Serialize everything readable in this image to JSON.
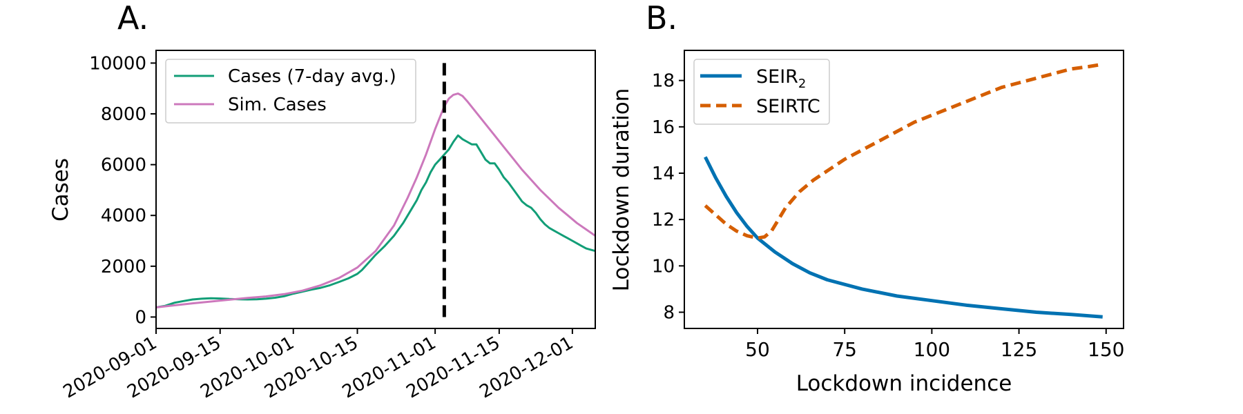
{
  "colors": {
    "cases": "#129e77",
    "sim_cases": "#cc78bc",
    "seir2": "#0072b2",
    "seirtc": "#d55e00",
    "lockdown_line": "#000000"
  },
  "chart_data": [
    {
      "type": "line",
      "panel_label": "A.",
      "title": "",
      "xlabel": "",
      "ylabel": "Cases",
      "x_unit": "days since 2020-09-01",
      "xlim": [
        0,
        96
      ],
      "ylim": [
        -450,
        10500
      ],
      "xticks": [
        {
          "value": 0,
          "label": "2020-09-01"
        },
        {
          "value": 14,
          "label": "2020-09-15"
        },
        {
          "value": 30,
          "label": "2020-10-01"
        },
        {
          "value": 44,
          "label": "2020-10-15"
        },
        {
          "value": 61,
          "label": "2020-11-01"
        },
        {
          "value": 75,
          "label": "2020-11-15"
        },
        {
          "value": 91,
          "label": "2020-12-01"
        }
      ],
      "yticks": [
        {
          "value": 0,
          "label": "0"
        },
        {
          "value": 2000,
          "label": "2000"
        },
        {
          "value": 4000,
          "label": "4000"
        },
        {
          "value": 6000,
          "label": "6000"
        },
        {
          "value": 8000,
          "label": "8000"
        },
        {
          "value": 10000,
          "label": "10000"
        }
      ],
      "vline": {
        "x": 63,
        "y_range": [
          0,
          10000
        ],
        "style": "dashed"
      },
      "legend_position": "top-left",
      "series": [
        {
          "name": "Cases (7-day avg.)",
          "color_key": "cases",
          "style": "solid",
          "points": [
            [
              0,
              380
            ],
            [
              2,
              440
            ],
            [
              4,
              560
            ],
            [
              6,
              630
            ],
            [
              8,
              690
            ],
            [
              10,
              720
            ],
            [
              12,
              740
            ],
            [
              14,
              730
            ],
            [
              16,
              710
            ],
            [
              18,
              700
            ],
            [
              20,
              690
            ],
            [
              22,
              700
            ],
            [
              24,
              720
            ],
            [
              26,
              760
            ],
            [
              28,
              820
            ],
            [
              30,
              920
            ],
            [
              32,
              1000
            ],
            [
              34,
              1080
            ],
            [
              36,
              1150
            ],
            [
              38,
              1250
            ],
            [
              40,
              1380
            ],
            [
              42,
              1520
            ],
            [
              44,
              1700
            ],
            [
              45,
              1850
            ],
            [
              46,
              2050
            ],
            [
              48,
              2450
            ],
            [
              50,
              2800
            ],
            [
              52,
              3200
            ],
            [
              54,
              3700
            ],
            [
              56,
              4300
            ],
            [
              57,
              4600
            ],
            [
              58,
              5000
            ],
            [
              59,
              5300
            ],
            [
              60,
              5700
            ],
            [
              61,
              6000
            ],
            [
              62,
              6200
            ],
            [
              63,
              6400
            ],
            [
              64,
              6600
            ],
            [
              65,
              6900
            ],
            [
              66,
              7150
            ],
            [
              67,
              7000
            ],
            [
              68,
              6900
            ],
            [
              69,
              6800
            ],
            [
              70,
              6800
            ],
            [
              71,
              6500
            ],
            [
              72,
              6200
            ],
            [
              73,
              6050
            ],
            [
              74,
              6050
            ],
            [
              75,
              5800
            ],
            [
              76,
              5500
            ],
            [
              77,
              5300
            ],
            [
              78,
              5050
            ],
            [
              79,
              4800
            ],
            [
              80,
              4550
            ],
            [
              81,
              4400
            ],
            [
              82,
              4300
            ],
            [
              83,
              4100
            ],
            [
              84,
              3850
            ],
            [
              85,
              3650
            ],
            [
              86,
              3500
            ],
            [
              87,
              3400
            ],
            [
              88,
              3300
            ],
            [
              89,
              3200
            ],
            [
              90,
              3100
            ],
            [
              91,
              3000
            ],
            [
              92,
              2900
            ],
            [
              93,
              2800
            ],
            [
              94,
              2700
            ],
            [
              95,
              2650
            ],
            [
              96,
              2600
            ]
          ]
        },
        {
          "name": "Sim. Cases",
          "color_key": "sim_cases",
          "style": "solid",
          "points": [
            [
              0,
              380
            ],
            [
              4,
              460
            ],
            [
              8,
              540
            ],
            [
              12,
              610
            ],
            [
              16,
              680
            ],
            [
              20,
              750
            ],
            [
              24,
              810
            ],
            [
              28,
              900
            ],
            [
              32,
              1040
            ],
            [
              36,
              1250
            ],
            [
              40,
              1540
            ],
            [
              44,
              1950
            ],
            [
              48,
              2600
            ],
            [
              52,
              3600
            ],
            [
              55,
              4700
            ],
            [
              57,
              5500
            ],
            [
              59,
              6400
            ],
            [
              61,
              7400
            ],
            [
              63,
              8300
            ],
            [
              64,
              8600
            ],
            [
              65,
              8750
            ],
            [
              66,
              8800
            ],
            [
              67,
              8700
            ],
            [
              68,
              8500
            ],
            [
              70,
              8050
            ],
            [
              72,
              7600
            ],
            [
              74,
              7150
            ],
            [
              76,
              6700
            ],
            [
              78,
              6250
            ],
            [
              80,
              5800
            ],
            [
              82,
              5400
            ],
            [
              84,
              5000
            ],
            [
              86,
              4650
            ],
            [
              88,
              4300
            ],
            [
              90,
              4000
            ],
            [
              92,
              3700
            ],
            [
              94,
              3450
            ],
            [
              96,
              3200
            ]
          ]
        }
      ]
    },
    {
      "type": "line",
      "panel_label": "B.",
      "title": "",
      "xlabel": "Lockdown incidence",
      "ylabel": "Lockdown duration",
      "xlim": [
        29,
        155
      ],
      "ylim": [
        7.3,
        19.3
      ],
      "xticks": [
        {
          "value": 50,
          "label": "50"
        },
        {
          "value": 75,
          "label": "75"
        },
        {
          "value": 100,
          "label": "100"
        },
        {
          "value": 125,
          "label": "125"
        },
        {
          "value": 150,
          "label": "150"
        }
      ],
      "yticks": [
        {
          "value": 8,
          "label": "8"
        },
        {
          "value": 10,
          "label": "10"
        },
        {
          "value": 12,
          "label": "12"
        },
        {
          "value": 14,
          "label": "14"
        },
        {
          "value": 16,
          "label": "16"
        },
        {
          "value": 18,
          "label": "18"
        }
      ],
      "legend_position": "top-left",
      "series": [
        {
          "name": "SEIR",
          "name_subscript": "2",
          "color_key": "seir2",
          "style": "solid",
          "points": [
            [
              35,
              14.7
            ],
            [
              38,
              13.8
            ],
            [
              41,
              13.0
            ],
            [
              44,
              12.3
            ],
            [
              47,
              11.7
            ],
            [
              50,
              11.2
            ],
            [
              55,
              10.6
            ],
            [
              60,
              10.1
            ],
            [
              65,
              9.7
            ],
            [
              70,
              9.4
            ],
            [
              80,
              9.0
            ],
            [
              90,
              8.7
            ],
            [
              100,
              8.5
            ],
            [
              110,
              8.3
            ],
            [
              120,
              8.15
            ],
            [
              130,
              8.0
            ],
            [
              140,
              7.9
            ],
            [
              149,
              7.8
            ]
          ]
        },
        {
          "name": "SEIRTC",
          "name_subscript": "",
          "color_key": "seirtc",
          "style": "dashed",
          "points": [
            [
              35,
              12.6
            ],
            [
              38,
              12.2
            ],
            [
              41,
              11.8
            ],
            [
              44,
              11.5
            ],
            [
              47,
              11.3
            ],
            [
              50,
              11.2
            ],
            [
              52,
              11.25
            ],
            [
              54,
              11.5
            ],
            [
              56,
              12.0
            ],
            [
              58,
              12.5
            ],
            [
              62,
              13.2
            ],
            [
              66,
              13.7
            ],
            [
              70,
              14.1
            ],
            [
              75,
              14.6
            ],
            [
              80,
              15.0
            ],
            [
              85,
              15.4
            ],
            [
              90,
              15.8
            ],
            [
              95,
              16.2
            ],
            [
              100,
              16.5
            ],
            [
              105,
              16.8
            ],
            [
              110,
              17.1
            ],
            [
              115,
              17.4
            ],
            [
              120,
              17.7
            ],
            [
              125,
              17.9
            ],
            [
              130,
              18.1
            ],
            [
              135,
              18.3
            ],
            [
              140,
              18.5
            ],
            [
              145,
              18.6
            ],
            [
              149,
              18.7
            ]
          ]
        }
      ]
    }
  ]
}
